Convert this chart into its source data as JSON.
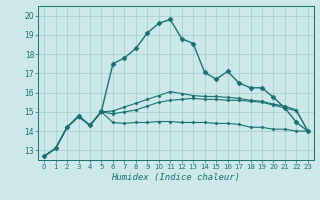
{
  "xlabel": "Humidex (Indice chaleur)",
  "background_color": "#cde8e8",
  "line_color": "#1a7070",
  "grid_color": "#9ecece",
  "xlim": [
    -0.5,
    23.5
  ],
  "ylim": [
    12.5,
    20.5
  ],
  "yticks": [
    13,
    14,
    15,
    16,
    17,
    18,
    19,
    20
  ],
  "xticks": [
    0,
    1,
    2,
    3,
    4,
    5,
    6,
    7,
    8,
    9,
    10,
    11,
    12,
    13,
    14,
    15,
    16,
    17,
    18,
    19,
    20,
    21,
    22,
    23
  ],
  "series": [
    {
      "x": [
        0,
        1,
        2,
        3,
        4,
        5,
        6,
        7,
        8,
        9,
        10,
        11,
        12,
        13,
        14,
        15,
        16,
        17,
        18,
        19,
        20,
        21,
        22,
        23
      ],
      "y": [
        12.7,
        13.1,
        14.2,
        14.8,
        14.3,
        15.05,
        17.5,
        17.8,
        18.3,
        19.1,
        19.6,
        19.8,
        18.8,
        18.55,
        17.05,
        16.7,
        17.1,
        16.5,
        16.25,
        16.25,
        15.75,
        15.2,
        14.45,
        14.0
      ],
      "marker": "D",
      "markersize": 2.5,
      "linewidth": 1.0
    },
    {
      "x": [
        0,
        1,
        2,
        3,
        4,
        5,
        6,
        7,
        8,
        9,
        10,
        11,
        12,
        13,
        14,
        15,
        16,
        17,
        18,
        19,
        20,
        21,
        22,
        23
      ],
      "y": [
        12.7,
        13.1,
        14.2,
        14.75,
        14.3,
        15.0,
        14.45,
        14.4,
        14.45,
        14.45,
        14.5,
        14.5,
        14.45,
        14.45,
        14.45,
        14.4,
        14.4,
        14.35,
        14.2,
        14.2,
        14.1,
        14.1,
        14.0,
        14.0
      ],
      "marker": "D",
      "markersize": 1.5,
      "linewidth": 0.8
    },
    {
      "x": [
        0,
        1,
        2,
        3,
        4,
        5,
        6,
        7,
        8,
        9,
        10,
        11,
        12,
        13,
        14,
        15,
        16,
        17,
        18,
        19,
        20,
        21,
        22,
        23
      ],
      "y": [
        12.7,
        13.1,
        14.2,
        14.75,
        14.3,
        15.0,
        14.9,
        15.0,
        15.1,
        15.3,
        15.5,
        15.6,
        15.65,
        15.7,
        15.65,
        15.65,
        15.6,
        15.6,
        15.55,
        15.5,
        15.35,
        15.2,
        15.05,
        14.0
      ],
      "marker": "D",
      "markersize": 1.5,
      "linewidth": 0.8
    },
    {
      "x": [
        0,
        1,
        2,
        3,
        4,
        5,
        6,
        7,
        8,
        9,
        10,
        11,
        12,
        13,
        14,
        15,
        16,
        17,
        18,
        19,
        20,
        21,
        22,
        23
      ],
      "y": [
        12.7,
        13.1,
        14.2,
        14.75,
        14.3,
        15.0,
        15.05,
        15.25,
        15.45,
        15.65,
        15.85,
        16.05,
        15.95,
        15.85,
        15.8,
        15.8,
        15.75,
        15.7,
        15.6,
        15.55,
        15.4,
        15.3,
        15.1,
        14.0
      ],
      "marker": "D",
      "markersize": 1.5,
      "linewidth": 0.8
    }
  ]
}
